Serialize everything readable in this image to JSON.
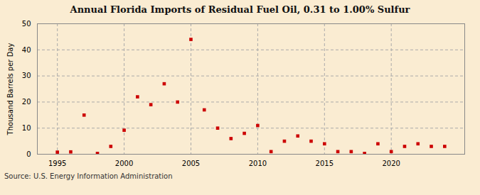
{
  "chart_data": {
    "type": "scatter",
    "title": "Annual Florida Imports of Residual Fuel Oil, 0.31 to 1.00% Sulfur",
    "ylabel": "Thousand Barrels per Day",
    "source": "Source: U.S. Energy Information Administration",
    "x": [
      1995,
      1996,
      1997,
      1998,
      1999,
      2000,
      2001,
      2002,
      2003,
      2004,
      2005,
      2006,
      2007,
      2008,
      2009,
      2010,
      2011,
      2012,
      2013,
      2014,
      2015,
      2016,
      2017,
      2018,
      2019,
      2020,
      2021,
      2022,
      2023,
      2024
    ],
    "values": [
      0.8,
      0.9,
      15.0,
      0.3,
      3.0,
      9.2,
      22.0,
      19.0,
      27.0,
      20.0,
      44.0,
      17.0,
      10.0,
      6.0,
      8.0,
      11.0,
      1.0,
      5.0,
      7.0,
      5.0,
      4.0,
      1.0,
      1.0,
      0.3,
      4.0,
      1.0,
      3.0,
      4.0,
      3.0,
      3.0
    ],
    "color": "#cc0000",
    "marker": "square",
    "xlim": [
      1993.5,
      2025.5
    ],
    "ylim": [
      0,
      50
    ],
    "xticks": [
      1995,
      2000,
      2005,
      2010,
      2015,
      2020
    ],
    "yticks": [
      0,
      10,
      20,
      30,
      40,
      50
    ],
    "grid": true
  }
}
